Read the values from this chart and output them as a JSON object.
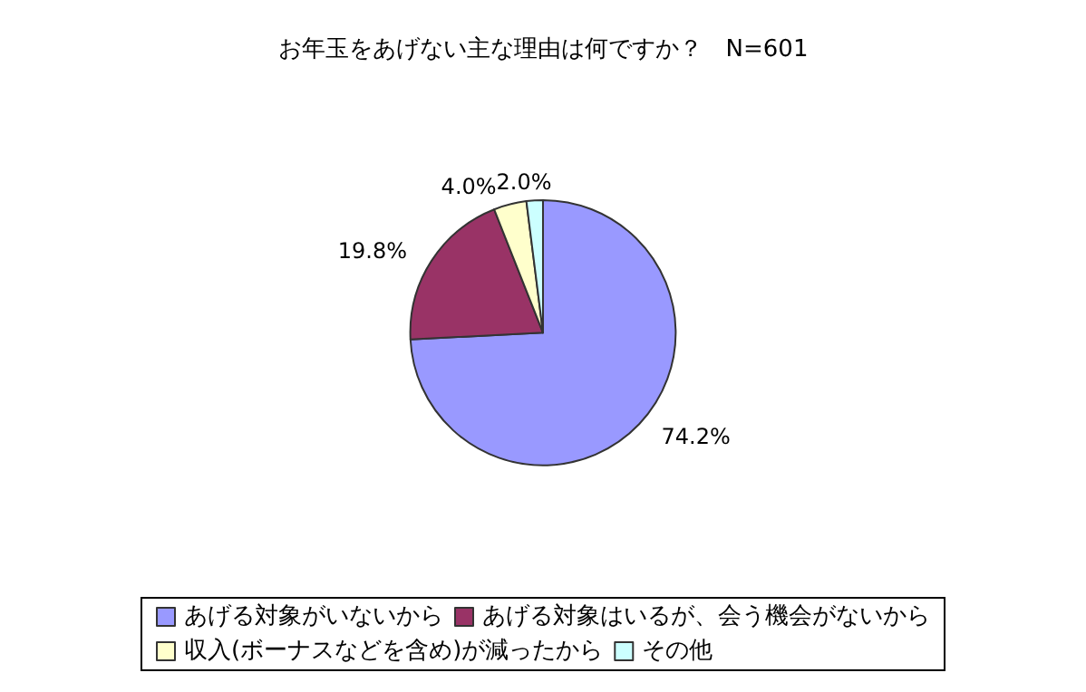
{
  "chart_data": {
    "type": "pie",
    "title": "お年玉をあげない主な理由は何ですか？　N=601",
    "categories": [
      "あげる対象がいないから",
      "あげる対象はいるが、会う機会がないから",
      "収入(ボーナスなどを含め)が減ったから",
      "その他"
    ],
    "values": [
      74.2,
      19.8,
      4.0,
      2.0
    ],
    "colors": [
      "#9999ff",
      "#993366",
      "#ffffcc",
      "#ccffff"
    ],
    "value_labels": [
      "74.2%",
      "19.8%",
      "4.0%",
      "2.0%"
    ],
    "legend": "bottom"
  }
}
